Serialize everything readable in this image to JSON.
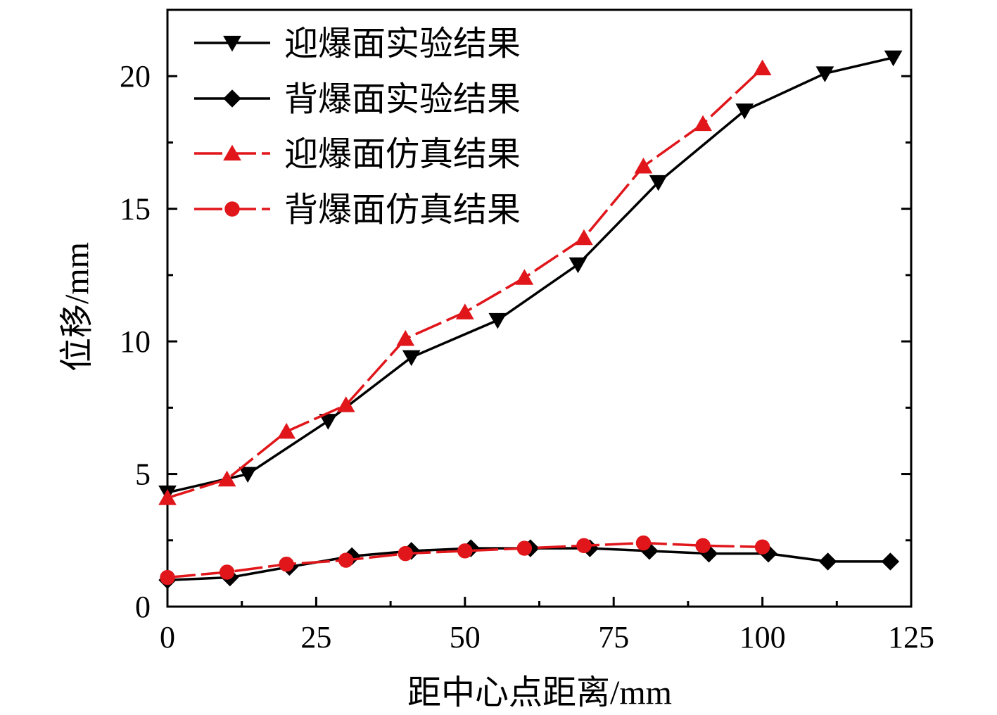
{
  "chart_data": {
    "type": "line",
    "xlabel": "距中心点距离/mm",
    "ylabel": "位移/mm",
    "xlim": [
      0,
      125
    ],
    "ylim": [
      0,
      22.5
    ],
    "xticks": [
      0,
      25,
      50,
      75,
      100,
      125
    ],
    "yticks": [
      0,
      5,
      10,
      15,
      20
    ],
    "xticks_minor": [
      12.5,
      37.5,
      62.5,
      87.5,
      112.5
    ],
    "yticks_minor": [
      2.5,
      7.5,
      12.5,
      17.5
    ],
    "grid": false,
    "legend_position": "top-left",
    "series": [
      {
        "name": "迎爆面实验结果",
        "color": "#000000",
        "marker": "triangle-down",
        "dashed": false,
        "x": [
          0,
          13.5,
          27,
          41,
          55.5,
          69,
          82.5,
          97,
          110.5,
          122
        ],
        "y": [
          4.3,
          5.0,
          7.0,
          9.4,
          10.8,
          12.9,
          16.0,
          18.7,
          20.1,
          20.7
        ]
      },
      {
        "name": "背爆面实验结果",
        "color": "#000000",
        "marker": "diamond",
        "dashed": false,
        "x": [
          0,
          10.5,
          20.5,
          31,
          41,
          51,
          61,
          71,
          81,
          91,
          101,
          111,
          121.5
        ],
        "y": [
          1.0,
          1.1,
          1.5,
          1.9,
          2.1,
          2.2,
          2.2,
          2.2,
          2.1,
          2.0,
          2.0,
          1.7,
          1.7
        ]
      },
      {
        "name": "迎爆面仿真结果",
        "color": "#e0161b",
        "marker": "triangle-up",
        "dashed": true,
        "x": [
          0,
          10,
          20,
          30,
          40,
          50,
          60,
          70,
          80,
          90,
          100
        ],
        "y": [
          4.1,
          4.8,
          6.6,
          7.6,
          10.1,
          11.1,
          12.4,
          13.9,
          16.6,
          18.2,
          20.3
        ]
      },
      {
        "name": "背爆面仿真结果",
        "color": "#e0161b",
        "marker": "circle",
        "dashed": true,
        "x": [
          0,
          10,
          20,
          30,
          40,
          50,
          60,
          70,
          80,
          90,
          100
        ],
        "y": [
          1.1,
          1.3,
          1.6,
          1.75,
          2.0,
          2.1,
          2.2,
          2.3,
          2.4,
          2.3,
          2.25
        ]
      }
    ]
  }
}
